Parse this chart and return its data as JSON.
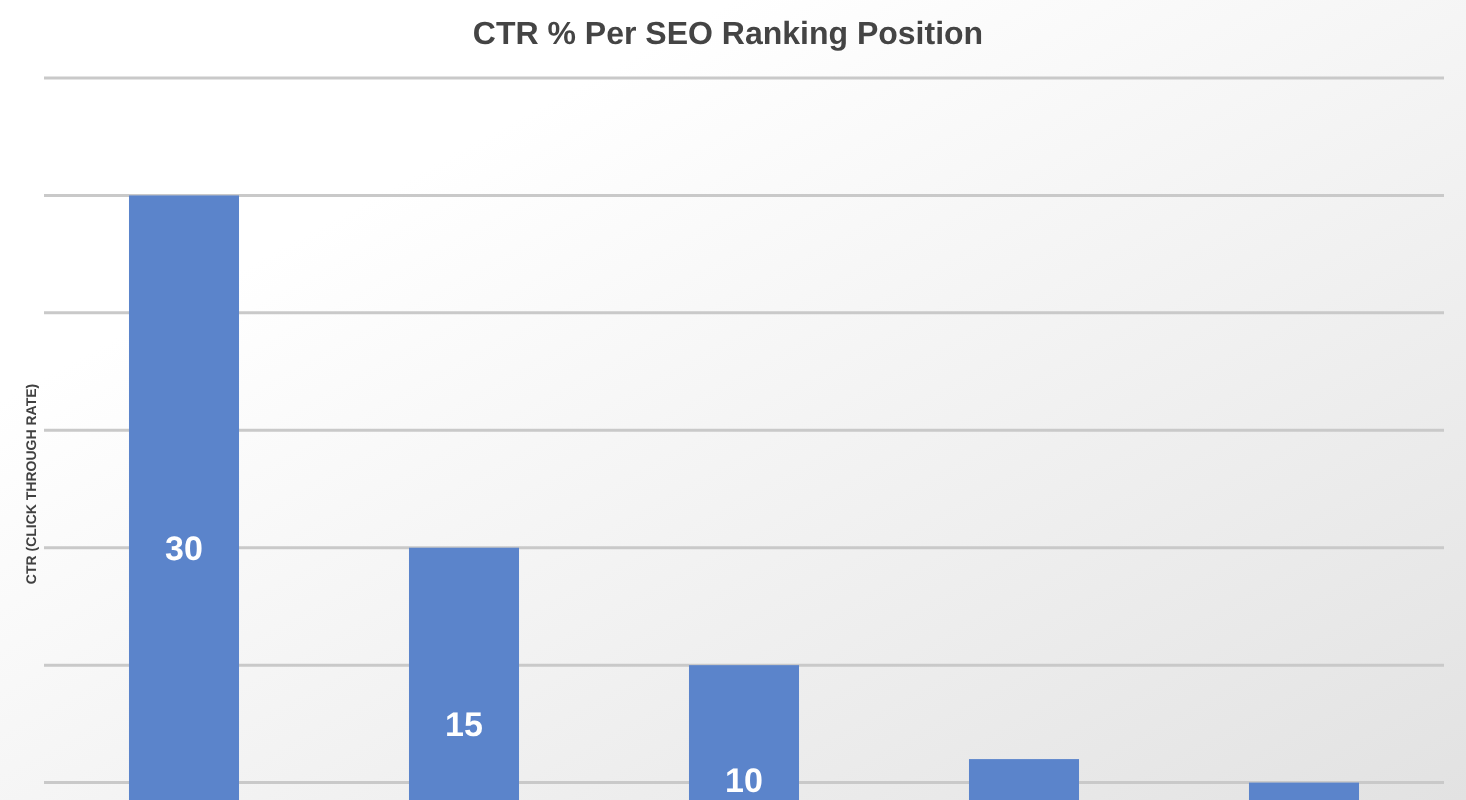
{
  "chart_data": {
    "type": "bar",
    "title": "CTR % Per SEO Ranking Position",
    "ylabel": "CTR (CLICK THROUGH RATE)",
    "categories": [
      null,
      null,
      null,
      null,
      null
    ],
    "values": [
      30,
      15,
      10,
      6,
      5
    ],
    "color": "#5b84cb",
    "value_labels": [
      "30",
      "15",
      "10",
      null,
      null
    ],
    "ylim": [
      0,
      35
    ],
    "yticks": [
      {
        "value": 5,
        "label": null
      },
      {
        "value": 10,
        "label": null
      },
      {
        "value": 15,
        "label": null
      },
      {
        "value": 20,
        "label": null
      },
      {
        "value": 25,
        "label": null
      },
      {
        "value": 30,
        "label": null
      },
      {
        "value": 35,
        "label": null
      }
    ],
    "grid": "y"
  }
}
